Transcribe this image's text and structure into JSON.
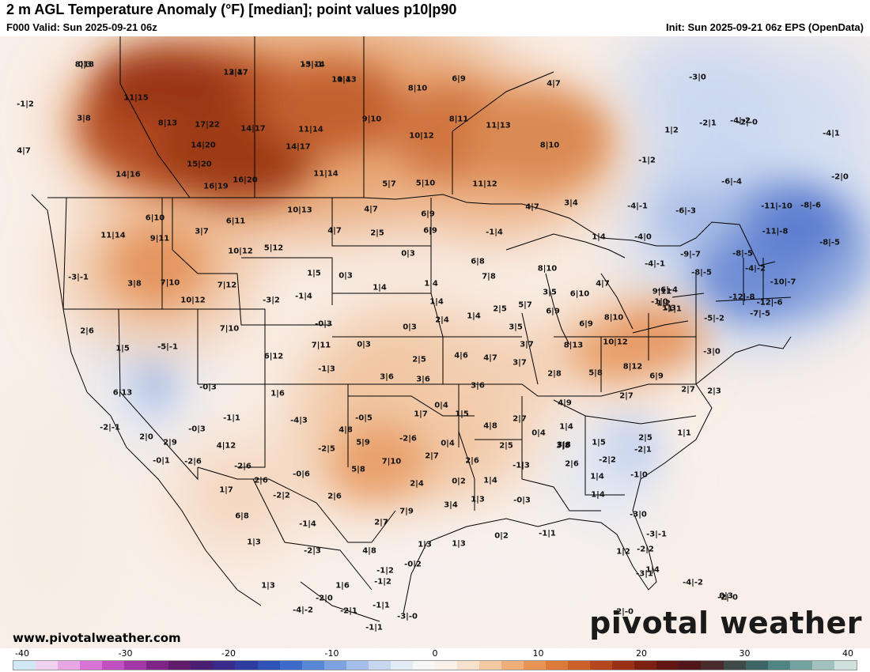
{
  "header": {
    "title": "2 m AGL Temperature Anomaly (°F) [median]; point values p10|p90",
    "valid": "F000 Valid: Sun 2025-09-21 06z",
    "init": "Init: Sun 2025-09-21 06z EPS (OpenData)"
  },
  "footer": {
    "url": "www.pivotalweather.com",
    "brand": "pivotal weather"
  },
  "colors": {
    "warm_strong": "#b4471a",
    "warm_mid": "#e7975a",
    "warm_light": "#f6d3b6",
    "neutral": "#f7f3f1",
    "cool_light": "#d6e1f3",
    "cool_mid": "#99b1e0",
    "cool_strong": "#4b6bc6",
    "boundary": "#000000"
  },
  "colorbar": {
    "ticks": [
      "-40",
      "-30",
      "-20",
      "-10",
      "0",
      "10",
      "20",
      "30",
      "40"
    ],
    "colors": [
      "#cfe8f3",
      "#f0d2ee",
      "#e7a6e4",
      "#d873d6",
      "#c24fc0",
      "#a238a6",
      "#7e2488",
      "#5f1c6b",
      "#4b1e73",
      "#3a2a8a",
      "#2f3c9f",
      "#2f52b7",
      "#3d6bca",
      "#5a86d6",
      "#7ea2e0",
      "#a4bfe9",
      "#c8d7f0",
      "#e3ebf7",
      "#f6f6f6",
      "#faf1ea",
      "#f7e0cc",
      "#f3c9a4",
      "#eeaf7b",
      "#e79455",
      "#dc7a39",
      "#cb6029",
      "#b4471e",
      "#9a3116",
      "#7d2012",
      "#611613",
      "#511619",
      "#4a2a2c",
      "#3f4a48",
      "#3c6664",
      "#4f8482",
      "#74a3a0",
      "#a2c2bf",
      "#cfe0dd"
    ]
  },
  "point_values": [
    {
      "t": "8|13"
    },
    {
      "t": "13|17"
    },
    {
      "t": "13|14"
    },
    {
      "t": "11|13"
    },
    {
      "t": "6|9"
    },
    {
      "t": "4|7"
    },
    {
      "t": "-1|2"
    },
    {
      "t": "11|15"
    },
    {
      "t": "8|10"
    },
    {
      "t": "3|8"
    },
    {
      "t": "8|13"
    },
    {
      "t": "17|22"
    },
    {
      "t": "14|17"
    },
    {
      "t": "11|14"
    },
    {
      "t": "9|10"
    },
    {
      "t": "8|11"
    },
    {
      "t": "11|13"
    },
    {
      "t": "4|7"
    },
    {
      "t": "14|20"
    },
    {
      "t": "14|17"
    },
    {
      "t": "10|12"
    },
    {
      "t": "8|10"
    },
    {
      "t": "15|20"
    },
    {
      "t": "14|16"
    },
    {
      "t": "16|19"
    },
    {
      "t": "16|20"
    },
    {
      "t": "11|14"
    },
    {
      "t": "5|7"
    },
    {
      "t": "5|10"
    },
    {
      "t": "11|12"
    },
    {
      "t": "6|10"
    },
    {
      "t": "10|13"
    },
    {
      "t": "4|7"
    },
    {
      "t": "6|9"
    },
    {
      "t": "4|7"
    },
    {
      "t": "3|4"
    },
    {
      "t": "11|14"
    },
    {
      "t": "9|11"
    },
    {
      "t": "3|7"
    },
    {
      "t": "6|11"
    },
    {
      "t": "4|7"
    },
    {
      "t": "2|5"
    },
    {
      "t": "6|9"
    },
    {
      "t": "-1|4"
    },
    {
      "t": "1|4"
    },
    {
      "t": "5|12"
    },
    {
      "t": "10|12"
    },
    {
      "t": "0|3"
    },
    {
      "t": "6|8"
    },
    {
      "t": "-3|-1"
    },
    {
      "t": "3|8"
    },
    {
      "t": "7|10"
    },
    {
      "t": "7|12"
    },
    {
      "t": "1|5"
    },
    {
      "t": "0|3"
    },
    {
      "t": "1|4"
    },
    {
      "t": "1|4"
    },
    {
      "t": "7|8"
    },
    {
      "t": "8|10"
    },
    {
      "t": "3|5"
    },
    {
      "t": "10|12"
    },
    {
      "t": "-3|2"
    },
    {
      "t": "-1|4"
    },
    {
      "t": "1|4"
    },
    {
      "t": "2|5"
    },
    {
      "t": "5|7"
    },
    {
      "t": "6|10"
    },
    {
      "t": "4|7"
    },
    {
      "t": "2|6"
    },
    {
      "t": "7|10"
    },
    {
      "t": "-0|3"
    },
    {
      "t": "0|3"
    },
    {
      "t": "2|4"
    },
    {
      "t": "1|4"
    },
    {
      "t": "3|5"
    },
    {
      "t": "6|9"
    },
    {
      "t": "8|10"
    },
    {
      "t": "6|9"
    },
    {
      "t": "1|5"
    },
    {
      "t": "-5|-1"
    },
    {
      "t": "7|11"
    },
    {
      "t": "0|3"
    },
    {
      "t": "3|7"
    },
    {
      "t": "8|13"
    },
    {
      "t": "10|12"
    },
    {
      "t": "6|12"
    },
    {
      "t": "2|5"
    },
    {
      "t": "4|6"
    },
    {
      "t": "4|7"
    },
    {
      "t": "3|7"
    },
    {
      "t": "-1|3"
    },
    {
      "t": "3|6"
    },
    {
      "t": "3|6"
    },
    {
      "t": "3|6"
    },
    {
      "t": "2|8"
    },
    {
      "t": "5|8"
    },
    {
      "t": "8|12"
    },
    {
      "t": "6|13"
    },
    {
      "t": "-0|3"
    },
    {
      "t": "1|6"
    },
    {
      "t": "0|4"
    },
    {
      "t": "1|7"
    },
    {
      "t": "1|5"
    },
    {
      "t": "4|9"
    },
    {
      "t": "2|7"
    },
    {
      "t": "6|9"
    },
    {
      "t": "3|8"
    },
    {
      "t": "-1|1"
    },
    {
      "t": "-4|3"
    },
    {
      "t": "-0|5"
    },
    {
      "t": "2|7"
    },
    {
      "t": "-2|-1"
    },
    {
      "t": "-0|3"
    },
    {
      "t": "4|8"
    },
    {
      "t": "4|8"
    },
    {
      "t": "0|4"
    },
    {
      "t": "1|4"
    },
    {
      "t": "2|0"
    },
    {
      "t": "2|9"
    },
    {
      "t": "4|12"
    },
    {
      "t": "-2|5"
    },
    {
      "t": "5|9"
    },
    {
      "t": "-2|6"
    },
    {
      "t": "0|4"
    },
    {
      "t": "2|5"
    },
    {
      "t": "3|8"
    },
    {
      "t": "1|5"
    },
    {
      "t": "-0|1"
    },
    {
      "t": "-2|6"
    },
    {
      "t": "-2|6"
    },
    {
      "t": "5|8"
    },
    {
      "t": "7|10"
    },
    {
      "t": "2|7"
    },
    {
      "t": "2|6"
    },
    {
      "t": "-1|3"
    },
    {
      "t": "2|6"
    },
    {
      "t": "-2|2"
    },
    {
      "t": "1|7"
    },
    {
      "t": "2|6"
    },
    {
      "t": "-0|6"
    },
    {
      "t": "2|4"
    },
    {
      "t": "0|2"
    },
    {
      "t": "1|4"
    },
    {
      "t": "1|4"
    },
    {
      "t": "-2|2"
    },
    {
      "t": "2|6"
    },
    {
      "t": "3|4"
    },
    {
      "t": "1|3"
    },
    {
      "t": "-0|3"
    },
    {
      "t": "1|4"
    },
    {
      "t": "6|8"
    },
    {
      "t": "-1|4"
    },
    {
      "t": "2|7"
    },
    {
      "t": "7|9"
    },
    {
      "t": "0|2"
    },
    {
      "t": "-1|1"
    },
    {
      "t": "1|3"
    },
    {
      "t": "-2|3"
    },
    {
      "t": "4|8"
    },
    {
      "t": "-1|2"
    },
    {
      "t": "1|3"
    },
    {
      "t": "1|3"
    },
    {
      "t": "1|6"
    },
    {
      "t": "-1|2"
    },
    {
      "t": "-0|2"
    },
    {
      "t": "1|3"
    },
    {
      "t": "-2|0"
    },
    {
      "t": "-1|1"
    },
    {
      "t": "-4|-2"
    },
    {
      "t": "-2|1"
    },
    {
      "t": "-3|-0"
    },
    {
      "t": "1|2"
    },
    {
      "t": "0|3"
    },
    {
      "t": "-3|0"
    },
    {
      "t": "1|2"
    },
    {
      "t": "-2|1"
    },
    {
      "t": "-4|-2"
    },
    {
      "t": "-4|1"
    },
    {
      "t": "-1|2"
    },
    {
      "t": "-6|-4"
    },
    {
      "t": "-2|0"
    },
    {
      "t": "-4|-1"
    },
    {
      "t": "-6|-3"
    },
    {
      "t": "-11|-10"
    },
    {
      "t": "-8|-6"
    },
    {
      "t": "-4|0"
    },
    {
      "t": "-11|-8"
    },
    {
      "t": "-8|-5"
    },
    {
      "t": "-9|-7"
    },
    {
      "t": "-8|-5"
    },
    {
      "t": "-4|-2"
    },
    {
      "t": "-4|-1"
    },
    {
      "t": "-8|-5"
    },
    {
      "t": "-10|-7"
    },
    {
      "t": "-6|-4"
    },
    {
      "t": "-12|-8"
    },
    {
      "t": "-12|-6"
    },
    {
      "t": "-7|-5"
    },
    {
      "t": "-5|-2"
    },
    {
      "t": "-3|0"
    },
    {
      "t": "-1|0"
    },
    {
      "t": "1|3"
    },
    {
      "t": "9|11"
    },
    {
      "t": "1|2"
    },
    {
      "t": "-1|1"
    },
    {
      "t": "2|7"
    },
    {
      "t": "2|3"
    },
    {
      "t": "1|1"
    },
    {
      "t": "2|5"
    },
    {
      "t": "-2|1"
    },
    {
      "t": "-1|0"
    },
    {
      "t": "-3|0"
    },
    {
      "t": "-3|-1"
    },
    {
      "t": "-2|2"
    },
    {
      "t": "1|4"
    },
    {
      "t": "-3|1"
    },
    {
      "t": "-4|-2"
    },
    {
      "t": "-2|-0"
    },
    {
      "t": "-2|-0"
    },
    {
      "t": "-2|-0"
    },
    {
      "t": "-1|1"
    },
    {
      "t": "0|3"
    },
    {
      "t": "2|4"
    },
    {
      "t": "-5|-1"
    },
    {
      "t": "0|4"
    }
  ]
}
